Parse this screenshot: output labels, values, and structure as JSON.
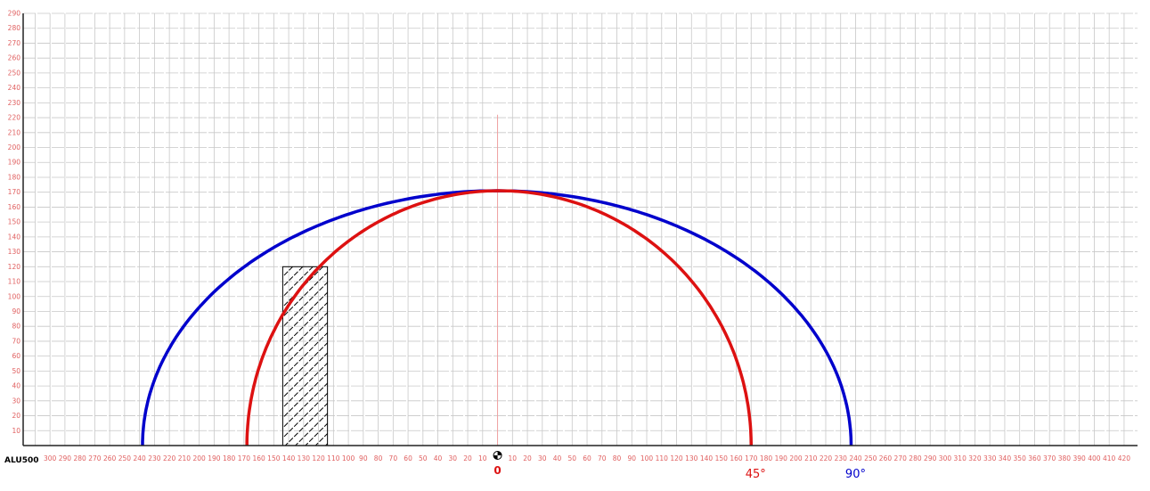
{
  "chart_data": {
    "type": "line",
    "title": "",
    "model_label": "ALU500",
    "xlim": [
      -318,
      429
    ],
    "ylim": [
      0,
      290
    ],
    "x_ticks_left": [
      300,
      290,
      280,
      270,
      260,
      250,
      240,
      230,
      220,
      210,
      200,
      190,
      180,
      170,
      160,
      150,
      140,
      130,
      120,
      110,
      100,
      90,
      80,
      70,
      60,
      50,
      40,
      30,
      20,
      10
    ],
    "x_ticks_right": [
      10,
      20,
      30,
      40,
      50,
      60,
      70,
      80,
      90,
      100,
      110,
      120,
      130,
      140,
      150,
      160,
      170,
      180,
      190,
      200,
      210,
      220,
      230,
      240,
      250,
      260,
      270,
      280,
      290,
      300,
      310,
      320,
      330,
      340,
      350,
      360,
      370,
      380,
      390,
      400,
      410,
      420
    ],
    "y_ticks": [
      10,
      20,
      30,
      40,
      50,
      60,
      70,
      80,
      90,
      100,
      110,
      120,
      130,
      140,
      150,
      160,
      170,
      180,
      190,
      200,
      210,
      220,
      230,
      240,
      250,
      260,
      270,
      280,
      290
    ],
    "grid": true,
    "center_label": "0",
    "series": [
      {
        "label": "90°",
        "color": "#0000cc",
        "x_left": -238,
        "x_right": 237,
        "peak": 171,
        "shape": "half-ellipse"
      },
      {
        "label": "45°",
        "color": "#dd1111",
        "x_left": -168,
        "x_right": 170,
        "peak": 171,
        "shape": "half-ellipse"
      }
    ],
    "obstacle": {
      "x_from": -144,
      "x_to": -114,
      "height": 120,
      "fill": "hatched"
    },
    "colors": {
      "tick": "#e06060",
      "grid": "#c8c8c8",
      "center_line": "#f0a0a0",
      "axis": "#222222"
    }
  }
}
